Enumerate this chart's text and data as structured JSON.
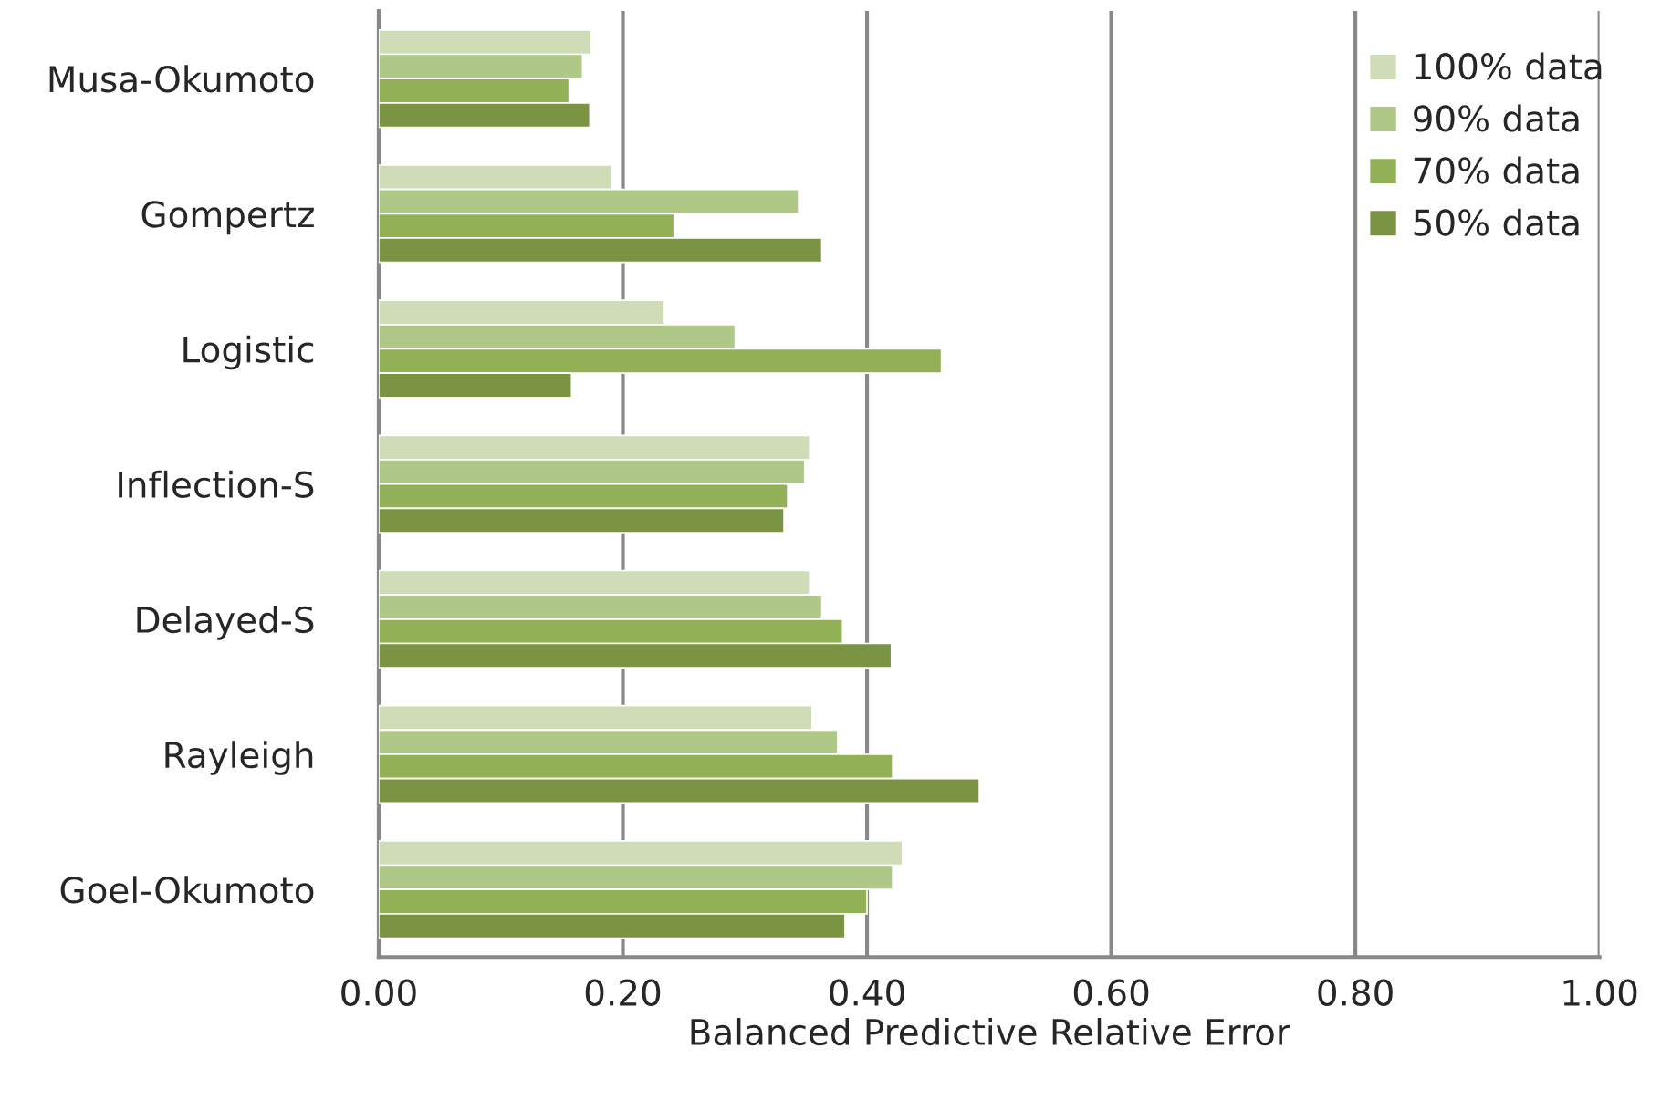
{
  "chart_data": {
    "type": "bar",
    "orientation": "horizontal",
    "xlabel": "Balanced Predictive Relative Error",
    "categories": [
      "Musa-Okumoto",
      "Gompertz",
      "Logistic",
      "Inflection-S",
      "Delayed-S",
      "Rayleigh",
      "Goel-Okumoto"
    ],
    "series": [
      {
        "name": "100% data",
        "color": "#d0dcb8",
        "values": [
          0.174,
          0.191,
          0.234,
          0.353,
          0.353,
          0.355,
          0.429
        ]
      },
      {
        "name": "90% data",
        "color": "#afc787",
        "values": [
          0.167,
          0.344,
          0.292,
          0.349,
          0.363,
          0.376,
          0.421
        ]
      },
      {
        "name": "70% data",
        "color": "#92b055",
        "values": [
          0.156,
          0.242,
          0.461,
          0.335,
          0.38,
          0.421,
          0.4
        ]
      },
      {
        "name": "50% data",
        "color": "#7a9444",
        "values": [
          0.173,
          0.363,
          0.158,
          0.332,
          0.42,
          0.492,
          0.382
        ]
      }
    ],
    "xlim": [
      0,
      1
    ],
    "xticks": [
      {
        "value": 0,
        "label": "0.00"
      },
      {
        "value": 0.2,
        "label": "0.20"
      },
      {
        "value": 0.4,
        "label": "0.40"
      },
      {
        "value": 0.6,
        "label": "0.60"
      },
      {
        "value": 0.8,
        "label": "0.80"
      },
      {
        "value": 1,
        "label": "1.00"
      }
    ],
    "grid": "x",
    "legend": "top right"
  }
}
